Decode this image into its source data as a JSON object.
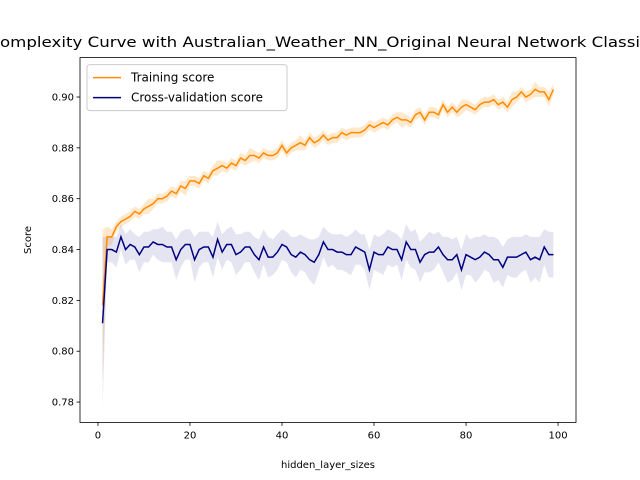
{
  "chart_data": {
    "type": "line",
    "title": "omplexity Curve with Australian_Weather_NN_Original Neural Network Classi",
    "xlabel": "hidden_layer_sizes",
    "ylabel": "Score",
    "x": [
      1,
      2,
      3,
      4,
      5,
      6,
      7,
      8,
      9,
      10,
      11,
      12,
      13,
      14,
      15,
      16,
      17,
      18,
      19,
      20,
      21,
      22,
      23,
      24,
      25,
      26,
      27,
      28,
      29,
      30,
      31,
      32,
      33,
      34,
      35,
      36,
      37,
      38,
      39,
      40,
      41,
      42,
      43,
      44,
      45,
      46,
      47,
      48,
      49,
      50,
      51,
      52,
      53,
      54,
      55,
      56,
      57,
      58,
      59,
      60,
      61,
      62,
      63,
      64,
      65,
      66,
      67,
      68,
      69,
      70,
      71,
      72,
      73,
      74,
      75,
      76,
      77,
      78,
      79,
      80,
      81,
      82,
      83,
      84,
      85,
      86,
      87,
      88,
      89,
      90,
      91,
      92,
      93,
      94,
      95,
      96,
      97,
      98,
      99
    ],
    "series": [
      {
        "name": "Training score",
        "color": "#ff8c00",
        "band_opacity": 0.2,
        "values": [
          0.818,
          0.845,
          0.845,
          0.849,
          0.851,
          0.852,
          0.853,
          0.855,
          0.854,
          0.856,
          0.857,
          0.858,
          0.86,
          0.86,
          0.861,
          0.863,
          0.862,
          0.865,
          0.864,
          0.867,
          0.867,
          0.866,
          0.869,
          0.868,
          0.871,
          0.872,
          0.873,
          0.872,
          0.874,
          0.873,
          0.876,
          0.875,
          0.877,
          0.877,
          0.876,
          0.878,
          0.877,
          0.877,
          0.878,
          0.881,
          0.878,
          0.88,
          0.881,
          0.882,
          0.881,
          0.884,
          0.882,
          0.883,
          0.885,
          0.883,
          0.884,
          0.884,
          0.886,
          0.885,
          0.886,
          0.886,
          0.886,
          0.887,
          0.889,
          0.888,
          0.889,
          0.89,
          0.889,
          0.891,
          0.892,
          0.891,
          0.891,
          0.89,
          0.893,
          0.894,
          0.891,
          0.894,
          0.894,
          0.893,
          0.897,
          0.894,
          0.896,
          0.894,
          0.896,
          0.897,
          0.896,
          0.895,
          0.897,
          0.898,
          0.898,
          0.899,
          0.897,
          0.898,
          0.896,
          0.899,
          0.9,
          0.902,
          0.9,
          0.901,
          0.903,
          0.902,
          0.902,
          0.899,
          0.903
        ],
        "std": [
          0.03,
          0.004,
          0.003,
          0.002,
          0.002,
          0.002,
          0.002,
          0.002,
          0.002,
          0.002,
          0.003,
          0.002,
          0.002,
          0.002,
          0.002,
          0.002,
          0.002,
          0.002,
          0.003,
          0.002,
          0.002,
          0.002,
          0.002,
          0.002,
          0.002,
          0.003,
          0.002,
          0.002,
          0.002,
          0.002,
          0.002,
          0.002,
          0.003,
          0.002,
          0.002,
          0.002,
          0.002,
          0.002,
          0.002,
          0.002,
          0.002,
          0.002,
          0.002,
          0.003,
          0.002,
          0.002,
          0.002,
          0.002,
          0.002,
          0.002,
          0.002,
          0.002,
          0.002,
          0.002,
          0.002,
          0.002,
          0.002,
          0.002,
          0.002,
          0.002,
          0.002,
          0.002,
          0.002,
          0.002,
          0.002,
          0.003,
          0.002,
          0.002,
          0.002,
          0.002,
          0.002,
          0.002,
          0.002,
          0.002,
          0.002,
          0.002,
          0.002,
          0.002,
          0.003,
          0.002,
          0.002,
          0.002,
          0.002,
          0.002,
          0.002,
          0.002,
          0.002,
          0.002,
          0.002,
          0.003,
          0.002,
          0.002,
          0.002,
          0.002,
          0.003,
          0.002,
          0.002,
          0.003,
          0.002
        ]
      },
      {
        "name": "Cross-validation score",
        "color": "#000080",
        "band_opacity": 0.1,
        "values": [
          0.811,
          0.84,
          0.84,
          0.839,
          0.845,
          0.84,
          0.842,
          0.841,
          0.838,
          0.841,
          0.841,
          0.843,
          0.842,
          0.842,
          0.841,
          0.841,
          0.836,
          0.84,
          0.842,
          0.842,
          0.836,
          0.84,
          0.841,
          0.841,
          0.837,
          0.844,
          0.839,
          0.842,
          0.842,
          0.838,
          0.839,
          0.841,
          0.841,
          0.838,
          0.836,
          0.841,
          0.837,
          0.837,
          0.839,
          0.842,
          0.841,
          0.838,
          0.837,
          0.839,
          0.838,
          0.836,
          0.835,
          0.838,
          0.843,
          0.84,
          0.84,
          0.839,
          0.839,
          0.838,
          0.838,
          0.841,
          0.84,
          0.839,
          0.832,
          0.839,
          0.838,
          0.838,
          0.841,
          0.84,
          0.84,
          0.836,
          0.843,
          0.84,
          0.84,
          0.835,
          0.838,
          0.839,
          0.839,
          0.841,
          0.838,
          0.836,
          0.836,
          0.838,
          0.832,
          0.838,
          0.837,
          0.836,
          0.837,
          0.839,
          0.838,
          0.836,
          0.836,
          0.833,
          0.837,
          0.837,
          0.837,
          0.838,
          0.839,
          0.836,
          0.837,
          0.836,
          0.841,
          0.838,
          0.838
        ],
        "std": [
          0.034,
          0.005,
          0.005,
          0.006,
          0.005,
          0.006,
          0.006,
          0.005,
          0.007,
          0.006,
          0.006,
          0.005,
          0.006,
          0.007,
          0.006,
          0.006,
          0.008,
          0.007,
          0.006,
          0.006,
          0.009,
          0.007,
          0.006,
          0.006,
          0.008,
          0.007,
          0.007,
          0.006,
          0.007,
          0.008,
          0.007,
          0.006,
          0.006,
          0.007,
          0.008,
          0.007,
          0.008,
          0.007,
          0.007,
          0.006,
          0.006,
          0.007,
          0.008,
          0.007,
          0.007,
          0.008,
          0.009,
          0.007,
          0.006,
          0.007,
          0.006,
          0.007,
          0.007,
          0.007,
          0.008,
          0.007,
          0.006,
          0.007,
          0.008,
          0.007,
          0.007,
          0.008,
          0.007,
          0.007,
          0.006,
          0.008,
          0.007,
          0.007,
          0.008,
          0.008,
          0.007,
          0.008,
          0.007,
          0.006,
          0.007,
          0.009,
          0.008,
          0.007,
          0.008,
          0.008,
          0.007,
          0.009,
          0.008,
          0.007,
          0.007,
          0.009,
          0.008,
          0.008,
          0.007,
          0.008,
          0.008,
          0.007,
          0.007,
          0.009,
          0.008,
          0.009,
          0.007,
          0.009,
          0.009
        ]
      }
    ],
    "xlim": [
      -3.9,
      103.9
    ],
    "xticks": [
      0,
      20,
      40,
      60,
      80,
      100
    ],
    "ylim": [
      0.772,
      0.9155
    ],
    "yticks": [
      0.78,
      {
        "value": 0.8,
        "label": "0.80"
      },
      0.82,
      0.84,
      0.86,
      0.88,
      {
        "value": 0.9,
        "label": "0.90"
      }
    ],
    "legend": "upper left"
  }
}
